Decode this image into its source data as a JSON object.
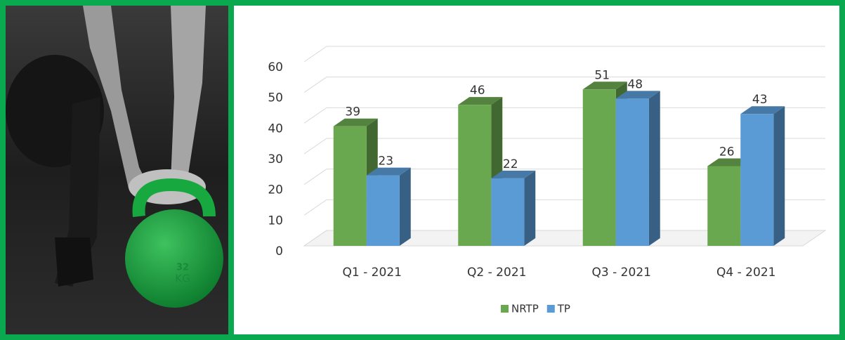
{
  "photo_text": [
    "32",
    "KG"
  ],
  "chart_data": {
    "type": "bar3d",
    "categories": [
      "Q1 - 2021",
      "Q2 - 2021",
      "Q3 - 2021",
      "Q4 - 2021"
    ],
    "series": [
      {
        "name": "NRTP",
        "color": "#6aa84f",
        "values": [
          39,
          46,
          51,
          26
        ]
      },
      {
        "name": "TP",
        "color": "#5b9bd5",
        "values": [
          23,
          22,
          48,
          43
        ]
      }
    ],
    "ylim": [
      0,
      60
    ],
    "yticks": [
      0,
      10,
      20,
      30,
      40,
      50,
      60
    ],
    "grid": true,
    "legend": "bottom"
  }
}
